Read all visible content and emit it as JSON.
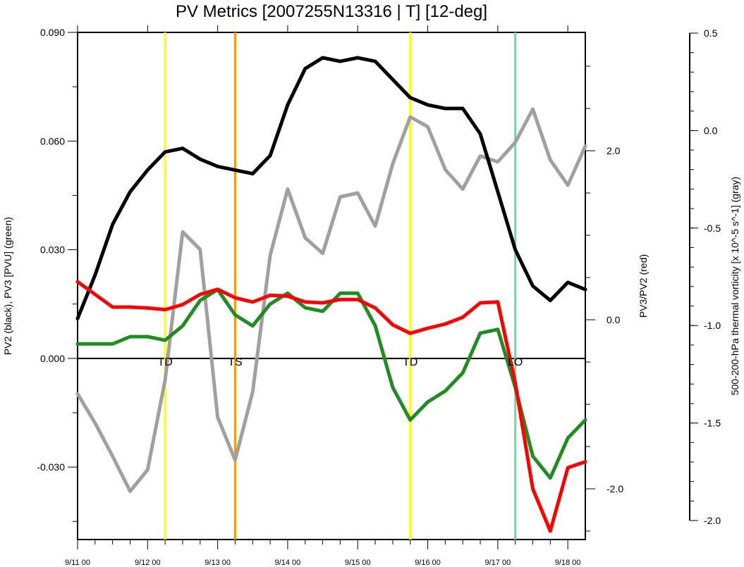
{
  "chart_data": {
    "type": "line",
    "title": "PV Metrics [2007255N13316 | T] [12-deg]",
    "ylabel_left": "PV2 (black), PV3 [PVU] (green)",
    "ylabel_inner_right": "PV3/PV2 (red)",
    "ylabel_outer_right": "500-200-hPa thermal vorticity [x 10^-5 s^-1] (gray)",
    "x_ticks": [
      {
        "label": "9/11 00",
        "t": 0
      },
      {
        "label": "9/12 00",
        "t": 4
      },
      {
        "label": "9/13 00",
        "t": 8
      },
      {
        "label": "9/14 00",
        "t": 12
      },
      {
        "label": "9/15 00",
        "t": 16
      },
      {
        "label": "9/16 00",
        "t": 20
      },
      {
        "label": "9/17 00",
        "t": 24
      },
      {
        "label": "9/18 00",
        "t": 28
      }
    ],
    "x_unit": "6-hourly steps from 9/11 00",
    "xlim": [
      0,
      29
    ],
    "axes": {
      "left": {
        "ylim": [
          -0.05,
          0.09
        ],
        "ticks": [
          "0.090",
          "0.060",
          "0.030",
          "0.000",
          "-0.030"
        ],
        "tick_values": [
          0.09,
          0.06,
          0.03,
          0.0,
          -0.03
        ]
      },
      "inner_right": {
        "ylim": [
          -2.6,
          3.4
        ],
        "ticks": [
          "2.0",
          "0.0",
          "-2.0"
        ],
        "tick_values": [
          2.0,
          0.0,
          -2.0
        ]
      },
      "outer_right": {
        "ylim": [
          -2.0,
          0.5
        ],
        "ticks": [
          "0.5",
          "0.0",
          "-0.5",
          "-1.0",
          "-1.5",
          "-2.0"
        ],
        "tick_values": [
          0.5,
          0.0,
          -0.5,
          -1.0,
          -1.5,
          -2.0
        ]
      }
    },
    "series": [
      {
        "name": "PV2",
        "axis": "left",
        "color": "#000000",
        "x": [
          0,
          1,
          2,
          3,
          4,
          5,
          6,
          7,
          8,
          9,
          10,
          11,
          12,
          13,
          14,
          15,
          16,
          17,
          18,
          19,
          20,
          21,
          22,
          23,
          24,
          25,
          26,
          27,
          28,
          29
        ],
        "values": [
          0.011,
          0.023,
          0.037,
          0.046,
          0.052,
          0.057,
          0.058,
          0.055,
          0.053,
          0.052,
          0.051,
          0.056,
          0.07,
          0.08,
          0.083,
          0.082,
          0.083,
          0.082,
          0.077,
          0.072,
          0.07,
          0.069,
          0.069,
          0.062,
          0.046,
          0.03,
          0.02,
          0.016,
          0.021,
          0.019
        ]
      },
      {
        "name": "PV3",
        "axis": "left",
        "color": "#228b22",
        "x": [
          0,
          1,
          2,
          3,
          4,
          5,
          6,
          7,
          8,
          9,
          10,
          11,
          12,
          13,
          14,
          15,
          16,
          17,
          18,
          19,
          20,
          21,
          22,
          23,
          24,
          25,
          26,
          27,
          28,
          29
        ],
        "values": [
          0.004,
          0.004,
          0.004,
          0.006,
          0.006,
          0.005,
          0.009,
          0.016,
          0.019,
          0.012,
          0.009,
          0.015,
          0.018,
          0.014,
          0.013,
          0.018,
          0.018,
          0.009,
          -0.008,
          -0.017,
          -0.012,
          -0.009,
          -0.004,
          0.007,
          0.008,
          -0.008,
          -0.027,
          -0.033,
          -0.022,
          -0.017
        ]
      },
      {
        "name": "PV3/PV2",
        "axis": "inner_right",
        "color": "#ff0000",
        "x": [
          0,
          1,
          2,
          3,
          4,
          5,
          6,
          7,
          8,
          9,
          10,
          11,
          12,
          13,
          14,
          15,
          16,
          17,
          18,
          19,
          20,
          21,
          22,
          23,
          24,
          25,
          26,
          27,
          28,
          29
        ],
        "values": [
          0.45,
          0.3,
          0.15,
          0.15,
          0.14,
          0.12,
          0.18,
          0.3,
          0.36,
          0.26,
          0.21,
          0.29,
          0.28,
          0.21,
          0.2,
          0.24,
          0.24,
          0.14,
          -0.06,
          -0.16,
          -0.1,
          -0.05,
          0.03,
          0.2,
          0.21,
          -0.75,
          -2.0,
          -2.5,
          -1.75,
          -1.68
        ]
      },
      {
        "name": "thermal vorticity",
        "axis": "outer_right",
        "color": "#a0a0a0",
        "x": [
          0,
          1,
          2,
          3,
          4,
          5,
          6,
          7,
          8,
          9,
          10,
          11,
          12,
          13,
          14,
          15,
          16,
          17,
          18,
          19,
          20,
          21,
          22,
          23,
          24,
          25,
          26,
          27,
          28,
          29
        ],
        "values": [
          -1.35,
          -1.5,
          -1.67,
          -1.85,
          -1.74,
          -1.28,
          -0.52,
          -0.61,
          -1.47,
          -1.69,
          -1.34,
          -0.64,
          -0.3,
          -0.55,
          -0.63,
          -0.34,
          -0.32,
          -0.49,
          -0.17,
          0.07,
          0.02,
          -0.2,
          -0.3,
          -0.13,
          -0.16,
          -0.06,
          0.11,
          -0.15,
          -0.28,
          -0.08
        ]
      }
    ],
    "reference_lines": [
      {
        "t": 5,
        "color": "#ffff00",
        "label": "TD"
      },
      {
        "t": 9,
        "color": "#ff9900",
        "label": "TS"
      },
      {
        "t": 19,
        "color": "#ffff00",
        "label": "TD"
      },
      {
        "t": 25,
        "color": "#66dd99",
        "label": "LO"
      }
    ],
    "zero_line": true,
    "grid": false
  }
}
